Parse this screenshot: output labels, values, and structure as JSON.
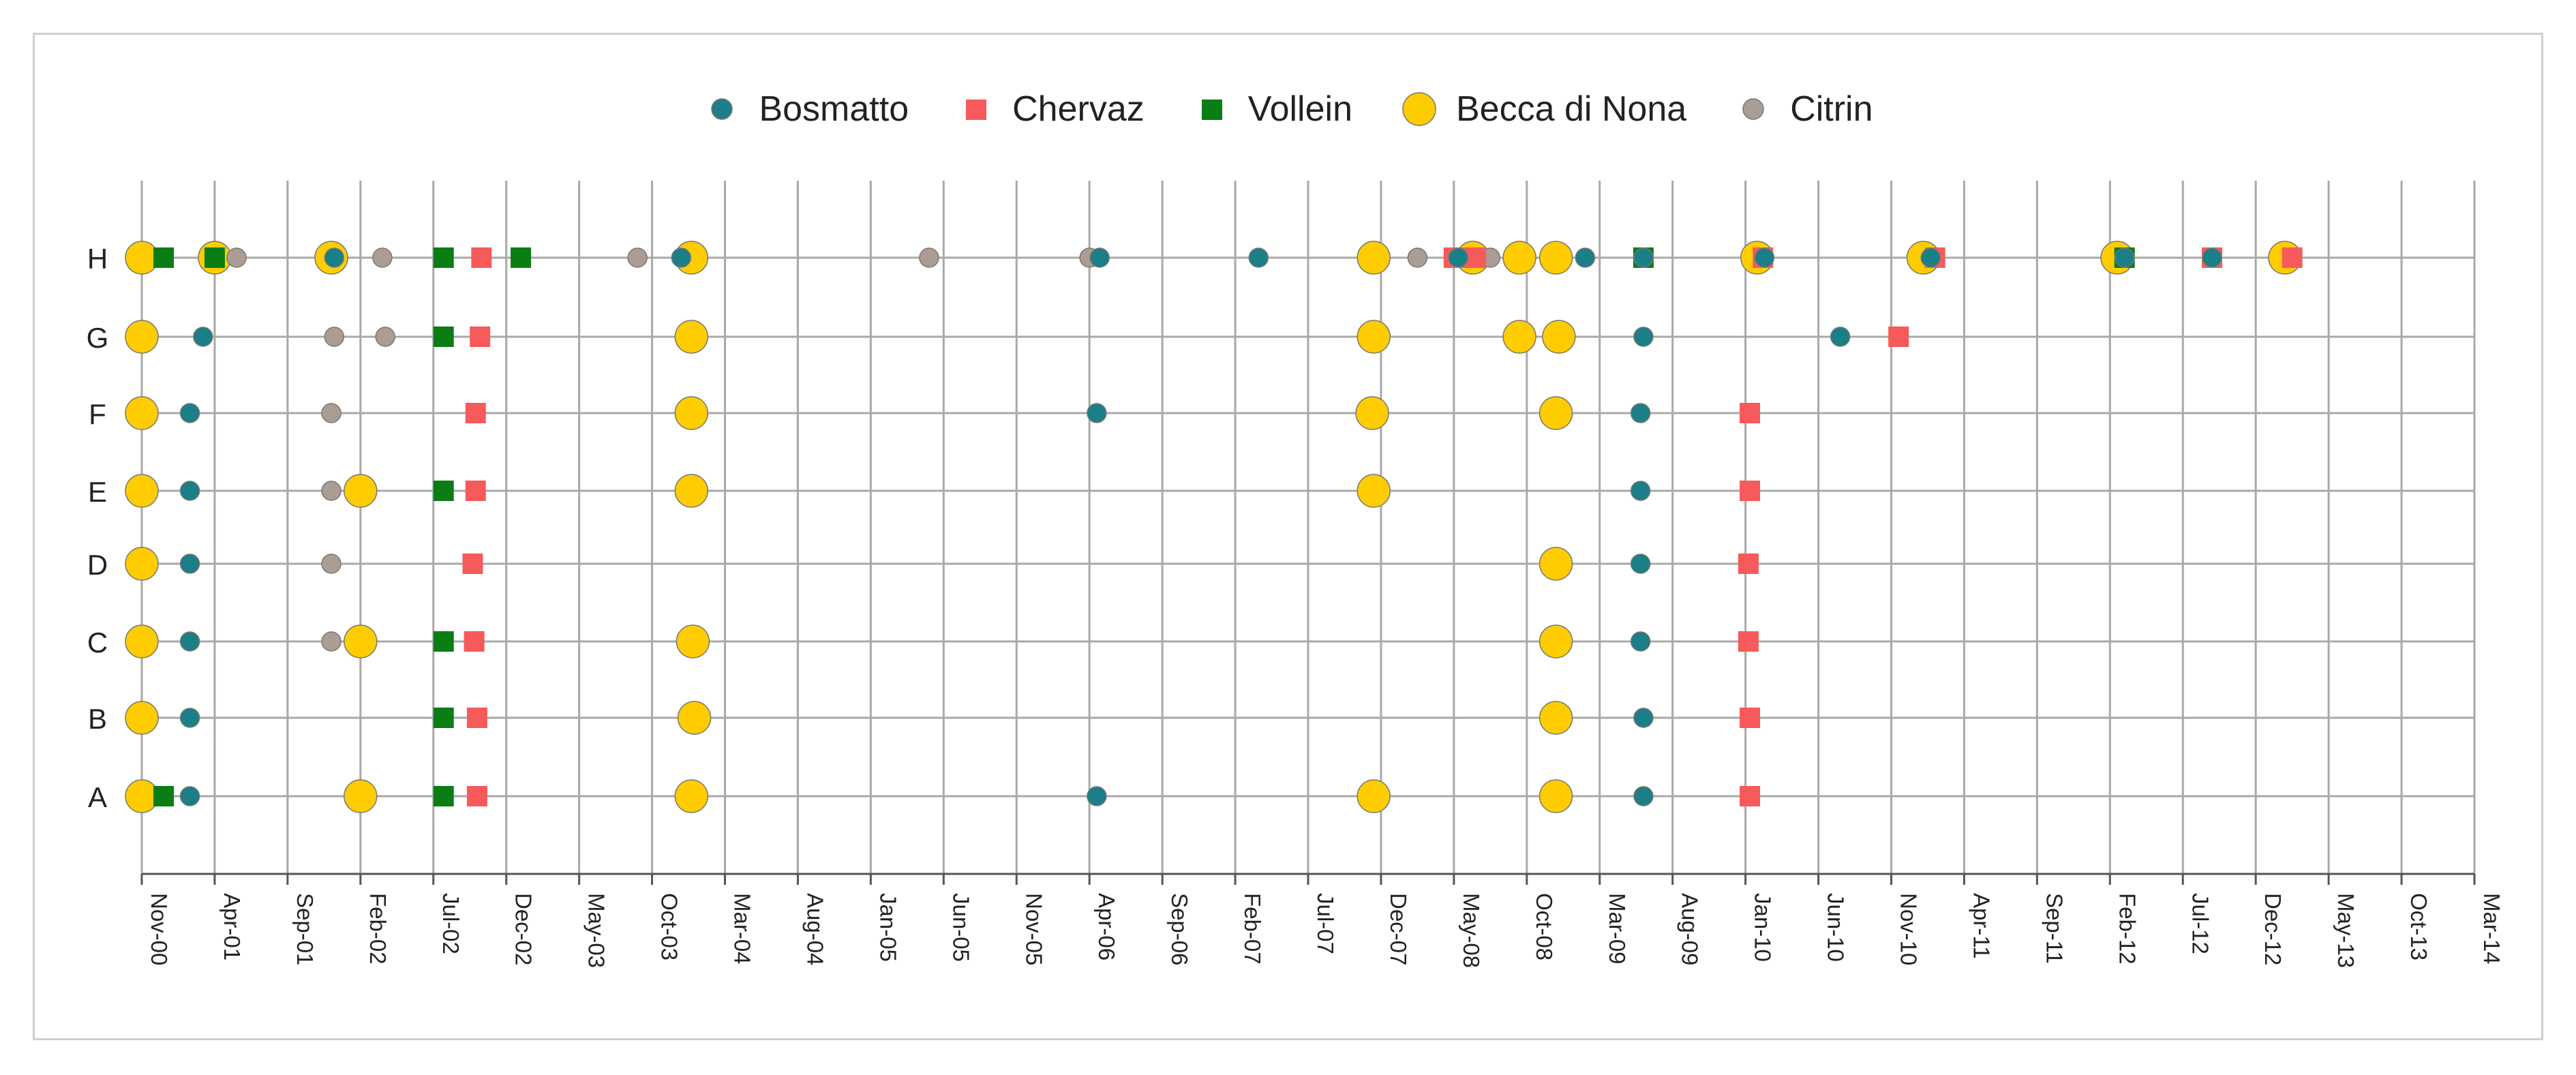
{
  "chart_data": {
    "type": "scatter",
    "title": "",
    "xlabel": "",
    "ylabel": "",
    "legend_position": "top-center",
    "x_ticks": [
      "Nov-00",
      "Apr-01",
      "Sep-01",
      "Feb-02",
      "Jul-02",
      "Dec-02",
      "May-03",
      "Oct-03",
      "Mar-04",
      "Aug-04",
      "Jan-05",
      "Jun-05",
      "Nov-05",
      "Apr-06",
      "Sep-06",
      "Feb-07",
      "Jul-07",
      "Dec-07",
      "May-08",
      "Oct-08",
      "Mar-09",
      "Aug-09",
      "Jan-10",
      "Jun-10",
      "Nov-10",
      "Apr-11",
      "Sep-11",
      "Feb-12",
      "Jul-12",
      "Dec-12",
      "May-13",
      "Oct-13",
      "Mar-14"
    ],
    "categories": [
      "A",
      "B",
      "C",
      "D",
      "E",
      "F",
      "G",
      "H"
    ],
    "series": [
      {
        "name": "Bosmatto",
        "color": "#1a7f86",
        "marker": "circle",
        "points": [
          {
            "x": 3.3,
            "y": "A"
          },
          {
            "x": 65.5,
            "y": "A"
          },
          {
            "x": 103.0,
            "y": "A"
          },
          {
            "x": 3.3,
            "y": "B"
          },
          {
            "x": 103.0,
            "y": "B"
          },
          {
            "x": 3.3,
            "y": "C"
          },
          {
            "x": 102.8,
            "y": "C"
          },
          {
            "x": 3.3,
            "y": "D"
          },
          {
            "x": 102.8,
            "y": "D"
          },
          {
            "x": 3.3,
            "y": "E"
          },
          {
            "x": 102.8,
            "y": "E"
          },
          {
            "x": 3.3,
            "y": "F"
          },
          {
            "x": 65.5,
            "y": "F"
          },
          {
            "x": 102.8,
            "y": "F"
          },
          {
            "x": 4.2,
            "y": "G"
          },
          {
            "x": 103.0,
            "y": "G"
          },
          {
            "x": 116.5,
            "y": "G"
          },
          {
            "x": 13.2,
            "y": "H"
          },
          {
            "x": 37.0,
            "y": "H"
          },
          {
            "x": 65.7,
            "y": "H"
          },
          {
            "x": 76.6,
            "y": "H"
          },
          {
            "x": 90.3,
            "y": "H"
          },
          {
            "x": 99.0,
            "y": "H"
          },
          {
            "x": 103.0,
            "y": "H"
          },
          {
            "x": 111.3,
            "y": "H"
          },
          {
            "x": 122.7,
            "y": "H"
          },
          {
            "x": 136.0,
            "y": "H"
          },
          {
            "x": 142.0,
            "y": "H"
          }
        ]
      },
      {
        "name": "Chervaz",
        "color": "#f65a5a",
        "marker": "square",
        "points": [
          {
            "x": 23.0,
            "y": "A"
          },
          {
            "x": 110.3,
            "y": "A"
          },
          {
            "x": 23.0,
            "y": "B"
          },
          {
            "x": 110.3,
            "y": "B"
          },
          {
            "x": 22.8,
            "y": "C"
          },
          {
            "x": 110.2,
            "y": "C"
          },
          {
            "x": 22.7,
            "y": "D"
          },
          {
            "x": 110.2,
            "y": "D"
          },
          {
            "x": 22.9,
            "y": "E"
          },
          {
            "x": 110.3,
            "y": "E"
          },
          {
            "x": 22.9,
            "y": "F"
          },
          {
            "x": 110.3,
            "y": "F"
          },
          {
            "x": 23.2,
            "y": "G"
          },
          {
            "x": 120.5,
            "y": "G"
          },
          {
            "x": 23.3,
            "y": "H"
          },
          {
            "x": 90.0,
            "y": "H"
          },
          {
            "x": 91.0,
            "y": "H"
          },
          {
            "x": 91.5,
            "y": "H"
          },
          {
            "x": 111.2,
            "y": "H"
          },
          {
            "x": 123.0,
            "y": "H"
          },
          {
            "x": 142.0,
            "y": "H"
          },
          {
            "x": 147.5,
            "y": "H"
          }
        ]
      },
      {
        "name": "Vollein",
        "color": "#0b7d15",
        "marker": "square",
        "points": [
          {
            "x": 1.5,
            "y": "A"
          },
          {
            "x": 20.7,
            "y": "A"
          },
          {
            "x": 20.7,
            "y": "B"
          },
          {
            "x": 20.7,
            "y": "C"
          },
          {
            "x": 20.7,
            "y": "E"
          },
          {
            "x": 20.7,
            "y": "G"
          },
          {
            "x": 1.5,
            "y": "H"
          },
          {
            "x": 5.0,
            "y": "H"
          },
          {
            "x": 20.7,
            "y": "H"
          },
          {
            "x": 26.0,
            "y": "H"
          },
          {
            "x": 103.0,
            "y": "H"
          },
          {
            "x": 136.0,
            "y": "H"
          }
        ]
      },
      {
        "name": "Becca di Nona",
        "color": "#ffcc00",
        "marker": "circle",
        "points": [
          {
            "x": 0.0,
            "y": "A"
          },
          {
            "x": 15.0,
            "y": "A"
          },
          {
            "x": 37.7,
            "y": "A"
          },
          {
            "x": 84.5,
            "y": "A"
          },
          {
            "x": 97.0,
            "y": "A"
          },
          {
            "x": 0.0,
            "y": "B"
          },
          {
            "x": 37.9,
            "y": "B"
          },
          {
            "x": 97.0,
            "y": "B"
          },
          {
            "x": 0.0,
            "y": "C"
          },
          {
            "x": 15.0,
            "y": "C"
          },
          {
            "x": 37.8,
            "y": "C"
          },
          {
            "x": 97.0,
            "y": "C"
          },
          {
            "x": 0.0,
            "y": "D"
          },
          {
            "x": 97.0,
            "y": "D"
          },
          {
            "x": 0.0,
            "y": "E"
          },
          {
            "x": 15.0,
            "y": "E"
          },
          {
            "x": 37.7,
            "y": "E"
          },
          {
            "x": 84.5,
            "y": "E"
          },
          {
            "x": 0.0,
            "y": "F"
          },
          {
            "x": 37.7,
            "y": "F"
          },
          {
            "x": 84.4,
            "y": "F"
          },
          {
            "x": 97.0,
            "y": "F"
          },
          {
            "x": 0.0,
            "y": "G"
          },
          {
            "x": 37.7,
            "y": "G"
          },
          {
            "x": 84.5,
            "y": "G"
          },
          {
            "x": 94.5,
            "y": "G"
          },
          {
            "x": 97.2,
            "y": "G"
          },
          {
            "x": 0.0,
            "y": "H"
          },
          {
            "x": 5.0,
            "y": "H"
          },
          {
            "x": 13.0,
            "y": "H"
          },
          {
            "x": 37.7,
            "y": "H"
          },
          {
            "x": 84.5,
            "y": "H"
          },
          {
            "x": 91.3,
            "y": "H"
          },
          {
            "x": 94.5,
            "y": "H"
          },
          {
            "x": 97.0,
            "y": "H"
          },
          {
            "x": 110.8,
            "y": "H"
          },
          {
            "x": 122.2,
            "y": "H"
          },
          {
            "x": 135.5,
            "y": "H"
          },
          {
            "x": 147.0,
            "y": "H"
          }
        ]
      },
      {
        "name": "Citrin",
        "color": "#ab9d93",
        "marker": "circle",
        "points": [
          {
            "x": 13.0,
            "y": "C"
          },
          {
            "x": 13.0,
            "y": "D"
          },
          {
            "x": 13.0,
            "y": "E"
          },
          {
            "x": 13.0,
            "y": "F"
          },
          {
            "x": 13.2,
            "y": "G"
          },
          {
            "x": 16.7,
            "y": "G"
          },
          {
            "x": 6.5,
            "y": "H"
          },
          {
            "x": 16.5,
            "y": "H"
          },
          {
            "x": 34.0,
            "y": "H"
          },
          {
            "x": 54.0,
            "y": "H"
          },
          {
            "x": 65.0,
            "y": "H"
          },
          {
            "x": 87.5,
            "y": "H"
          },
          {
            "x": 92.5,
            "y": "H"
          }
        ]
      }
    ]
  }
}
